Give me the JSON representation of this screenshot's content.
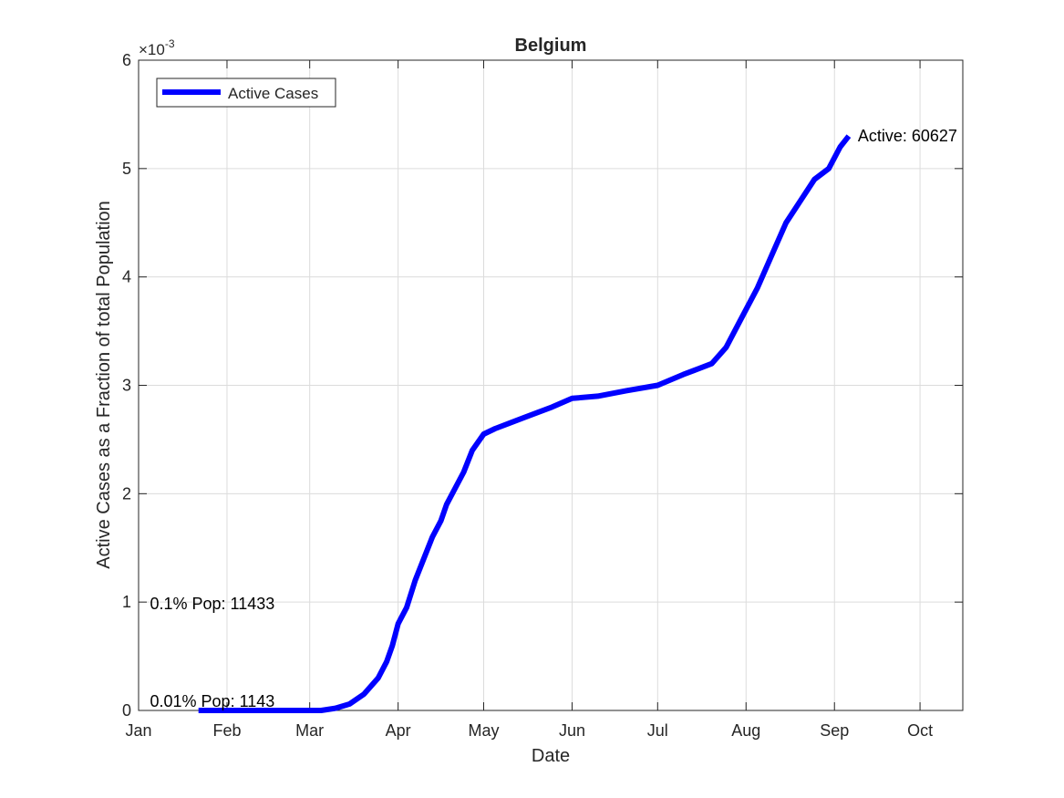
{
  "chart_data": {
    "type": "line",
    "title": "Belgium",
    "xlabel": "Date",
    "ylabel": "Active Cases as a Fraction of total Population",
    "y_exponent_label": "×10",
    "y_exponent_power": "-3",
    "ylim": [
      0,
      0.006
    ],
    "y_ticks": [
      0,
      0.001,
      0.002,
      0.003,
      0.004,
      0.005,
      0.006
    ],
    "y_tick_labels": [
      "0",
      "1",
      "2",
      "3",
      "4",
      "5",
      "6"
    ],
    "xlim": [
      "2020-01-01",
      "2020-10-16"
    ],
    "x_ticks": [
      "2020-01-01",
      "2020-02-01",
      "2020-03-01",
      "2020-04-01",
      "2020-05-01",
      "2020-06-01",
      "2020-07-01",
      "2020-08-01",
      "2020-09-01",
      "2020-10-01"
    ],
    "x_tick_labels": [
      "Jan",
      "Feb",
      "Mar",
      "Apr",
      "May",
      "Jun",
      "Jul",
      "Aug",
      "Sep",
      "Oct"
    ],
    "grid": true,
    "legend_position": "top-left",
    "series": [
      {
        "name": "Active Cases",
        "color": "#0000ff",
        "points": [
          [
            "2020-01-22",
            0
          ],
          [
            "2020-02-15",
            0
          ],
          [
            "2020-03-05",
            0.0
          ],
          [
            "2020-03-10",
            2e-05
          ],
          [
            "2020-03-15",
            6e-05
          ],
          [
            "2020-03-20",
            0.00015
          ],
          [
            "2020-03-25",
            0.0003
          ],
          [
            "2020-03-28",
            0.00045
          ],
          [
            "2020-03-30",
            0.0006
          ],
          [
            "2020-04-01",
            0.0008
          ],
          [
            "2020-04-04",
            0.00095
          ],
          [
            "2020-04-07",
            0.0012
          ],
          [
            "2020-04-10",
            0.0014
          ],
          [
            "2020-04-13",
            0.0016
          ],
          [
            "2020-04-16",
            0.00175
          ],
          [
            "2020-04-18",
            0.0019
          ],
          [
            "2020-04-21",
            0.00205
          ],
          [
            "2020-04-24",
            0.0022
          ],
          [
            "2020-04-27",
            0.0024
          ],
          [
            "2020-05-01",
            0.00255
          ],
          [
            "2020-05-05",
            0.0026
          ],
          [
            "2020-05-10",
            0.00265
          ],
          [
            "2020-05-15",
            0.0027
          ],
          [
            "2020-05-20",
            0.00275
          ],
          [
            "2020-05-25",
            0.0028
          ],
          [
            "2020-06-01",
            0.00288
          ],
          [
            "2020-06-10",
            0.0029
          ],
          [
            "2020-06-20",
            0.00295
          ],
          [
            "2020-07-01",
            0.003
          ],
          [
            "2020-07-10",
            0.0031
          ],
          [
            "2020-07-15",
            0.00315
          ],
          [
            "2020-07-20",
            0.0032
          ],
          [
            "2020-07-25",
            0.00335
          ],
          [
            "2020-07-30",
            0.0036
          ],
          [
            "2020-08-05",
            0.0039
          ],
          [
            "2020-08-10",
            0.0042
          ],
          [
            "2020-08-15",
            0.0045
          ],
          [
            "2020-08-20",
            0.0047
          ],
          [
            "2020-08-25",
            0.0049
          ],
          [
            "2020-08-30",
            0.005
          ],
          [
            "2020-09-03",
            0.0052
          ],
          [
            "2020-09-06",
            0.0053
          ]
        ]
      }
    ],
    "annotations": [
      {
        "text": "Active: 60627",
        "x": "2020-09-06",
        "y": 0.0053
      },
      {
        "text": "0.1% Pop: 11433",
        "x": "2020-01-05",
        "y": 0.001
      },
      {
        "text": "0.01% Pop: 1143",
        "x": "2020-01-05",
        "y": 0.0001
      }
    ]
  }
}
